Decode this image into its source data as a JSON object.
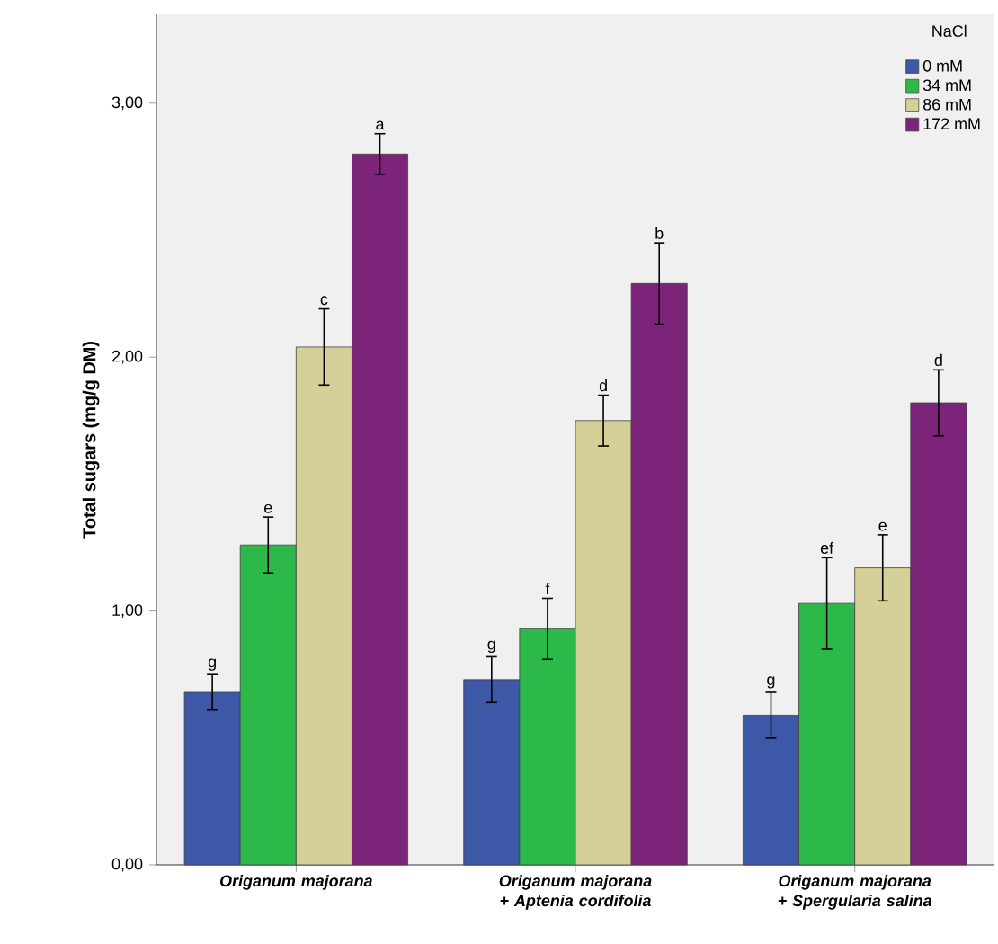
{
  "chart_data": {
    "type": "bar",
    "ylabel": "Total sugars (mg/g DM)",
    "legend_title": "NaCl",
    "categories": [
      "Origanum majorana",
      "Origanum majorana + Aptenia cordifolia",
      "Origanum majorana + Spergularia salina"
    ],
    "series": [
      {
        "name": "0 mM",
        "color": "#3e58a8",
        "values": [
          0.68,
          0.73,
          0.59
        ],
        "errors": [
          0.07,
          0.09,
          0.09
        ],
        "value_labels": [
          "g",
          "g",
          "g"
        ]
      },
      {
        "name": "34 mM",
        "color": "#2db84a",
        "values": [
          1.26,
          0.93,
          1.03
        ],
        "errors": [
          0.11,
          0.12,
          0.18
        ],
        "value_labels": [
          "e",
          "f",
          "ef"
        ]
      },
      {
        "name": "86 mM",
        "color": "#d5cf98",
        "values": [
          2.04,
          1.75,
          1.17
        ],
        "errors": [
          0.15,
          0.1,
          0.13
        ],
        "value_labels": [
          "c",
          "d",
          "e"
        ]
      },
      {
        "name": "172 mM",
        "color": "#7c2479",
        "values": [
          2.8,
          2.29,
          1.82
        ],
        "errors": [
          0.08,
          0.16,
          0.13
        ],
        "value_labels": [
          "a",
          "b",
          "d"
        ]
      }
    ],
    "ylim": [
      0,
      3.35
    ],
    "yticks": [
      {
        "value": 0,
        "label": "0,00"
      },
      {
        "value": 1,
        "label": "1,00"
      },
      {
        "value": 2,
        "label": "2,00"
      },
      {
        "value": 3,
        "label": "3,00"
      }
    ],
    "grid": false,
    "legend": "top right"
  }
}
